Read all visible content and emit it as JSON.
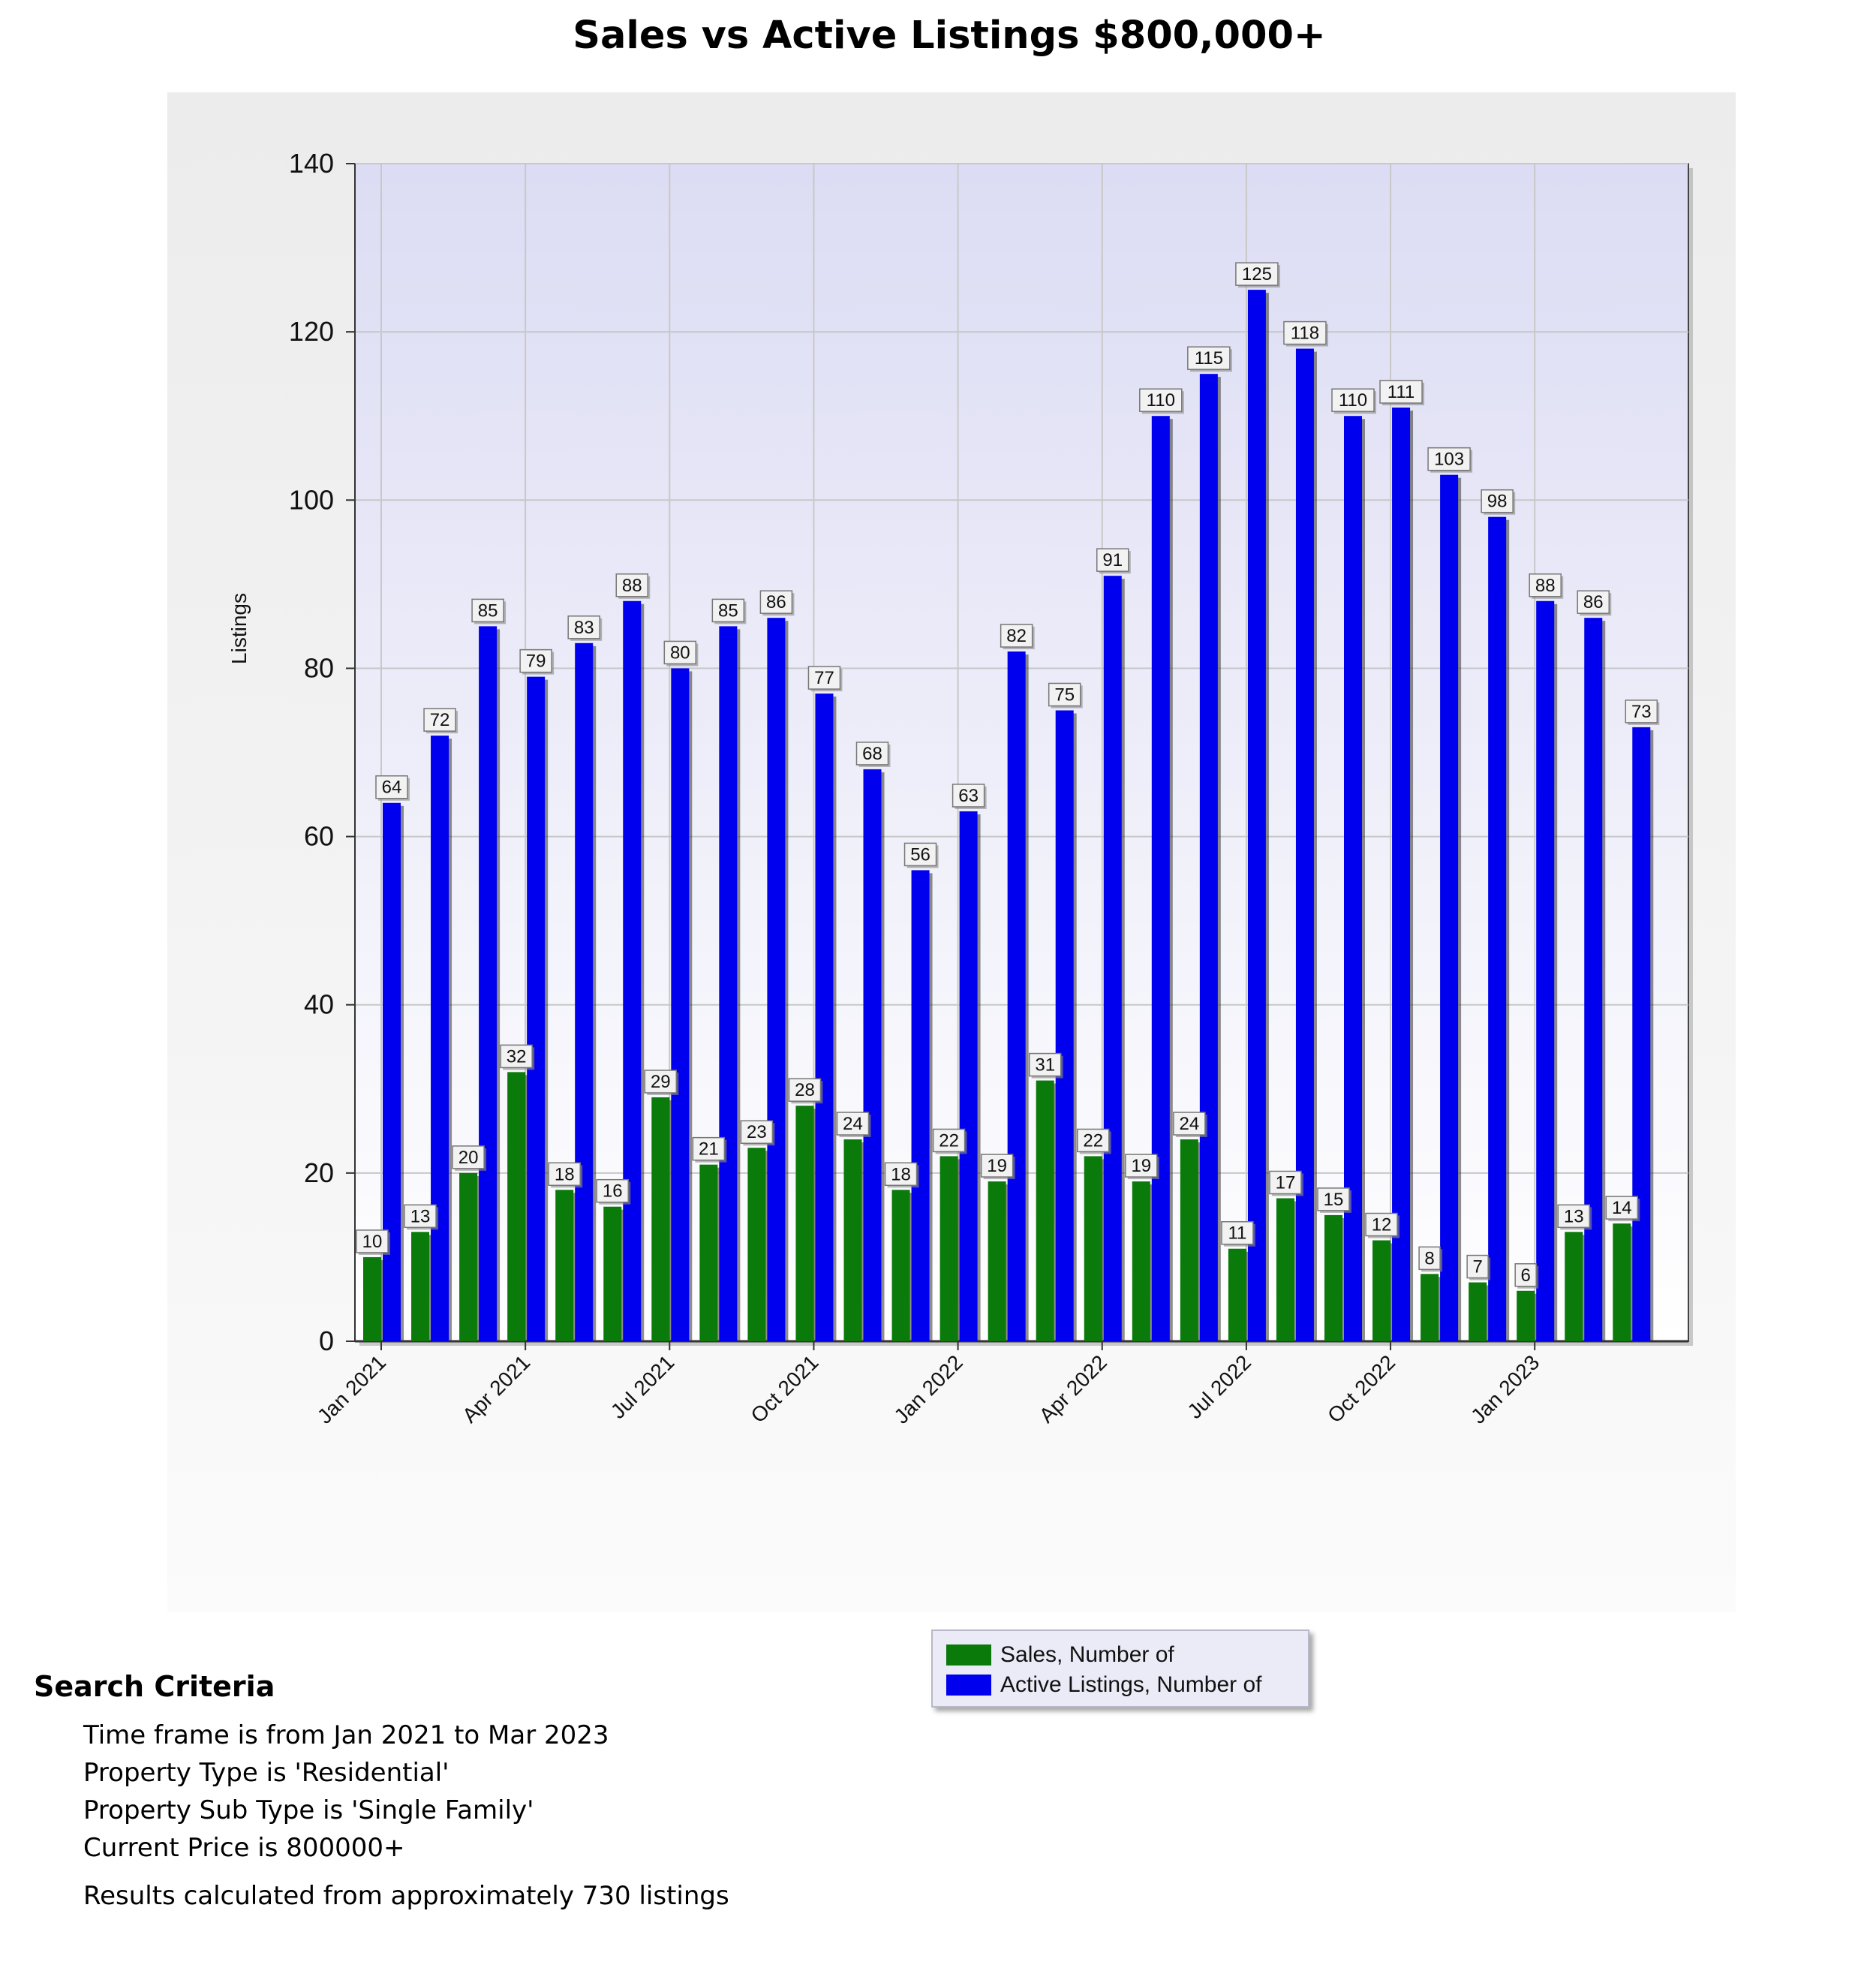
{
  "chart_data": {
    "type": "bar",
    "title": "Sales vs Active Listings $800,000+",
    "xlabel": "",
    "ylabel": "Listings",
    "ylim": [
      0,
      140
    ],
    "yticks": [
      0,
      20,
      40,
      60,
      80,
      100,
      120,
      140
    ],
    "grid": true,
    "categories": [
      "Jan 2021",
      "Feb 2021",
      "Mar 2021",
      "Apr 2021",
      "May 2021",
      "Jun 2021",
      "Jul 2021",
      "Aug 2021",
      "Sep 2021",
      "Oct 2021",
      "Nov 2021",
      "Dec 2021",
      "Jan 2022",
      "Feb 2022",
      "Mar 2022",
      "Apr 2022",
      "May 2022",
      "Jun 2022",
      "Jul 2022",
      "Aug 2022",
      "Sep 2022",
      "Oct 2022",
      "Nov 2022",
      "Dec 2022",
      "Jan 2023",
      "Feb 2023",
      "Mar 2023"
    ],
    "xtick_labels": [
      "Jan 2021",
      "Apr 2021",
      "Jul 2021",
      "Oct 2021",
      "Jan 2022",
      "Apr 2022",
      "Jul 2022",
      "Oct 2022",
      "Jan 2023"
    ],
    "series": [
      {
        "name": "Sales, Number of",
        "color": "#0a7a0a",
        "values": [
          10,
          13,
          20,
          32,
          18,
          16,
          29,
          21,
          23,
          28,
          24,
          18,
          22,
          19,
          31,
          22,
          19,
          24,
          11,
          17,
          15,
          12,
          8,
          7,
          6,
          13,
          14
        ]
      },
      {
        "name": "Active Listings, Number of",
        "color": "#0000ee",
        "values": [
          64,
          72,
          85,
          79,
          83,
          88,
          80,
          85,
          86,
          77,
          68,
          56,
          63,
          82,
          75,
          91,
          110,
          115,
          125,
          118,
          110,
          111,
          103,
          98,
          88,
          86,
          73
        ]
      }
    ],
    "legend_position": "bottom-center"
  },
  "search_criteria": {
    "heading": "Search Criteria",
    "lines": [
      "Time frame is from Jan 2021 to Mar 2023",
      "Property Type is 'Residential'",
      "Property Sub Type is 'Single Family'",
      "Current Price is 800000+"
    ],
    "results": "Results calculated from approximately 730 listings"
  }
}
